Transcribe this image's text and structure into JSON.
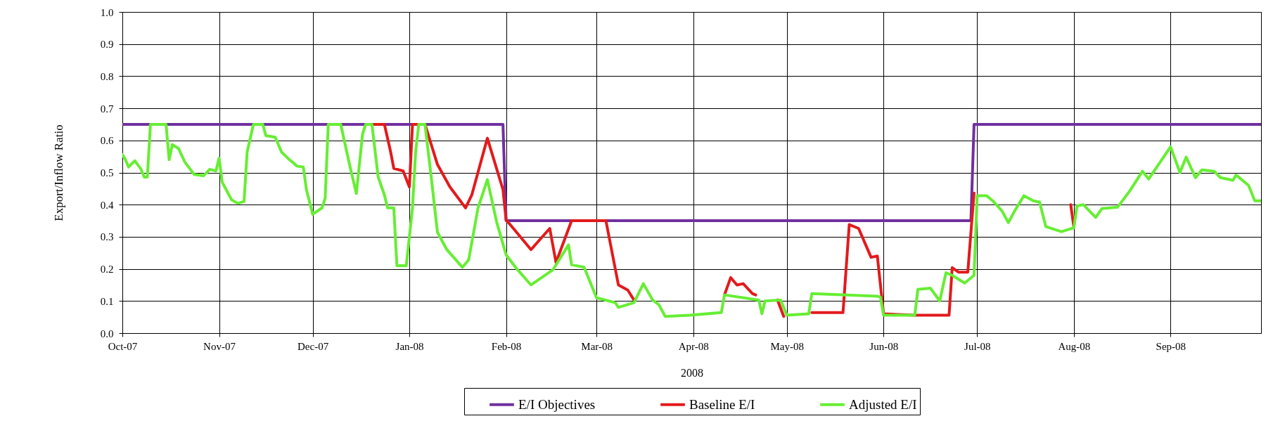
{
  "chart_data": {
    "type": "line",
    "xlabel": "2008",
    "ylabel": "Export/Inflow Ratio",
    "xlim": [
      "2007-10-01",
      "2008-09-30"
    ],
    "ylim": [
      0,
      1
    ],
    "xticks": [
      {
        "value": "2007-10-01",
        "label": "Oct-07"
      },
      {
        "value": "2007-11-01",
        "label": "Nov-07"
      },
      {
        "value": "2007-12-01",
        "label": "Dec-07"
      },
      {
        "value": "2008-01-01",
        "label": "Jan-08"
      },
      {
        "value": "2008-02-01",
        "label": "Feb-08"
      },
      {
        "value": "2008-03-01",
        "label": "Mar-08"
      },
      {
        "value": "2008-04-01",
        "label": "Apr-08"
      },
      {
        "value": "2008-05-01",
        "label": "May-08"
      },
      {
        "value": "2008-06-01",
        "label": "Jun-08"
      },
      {
        "value": "2008-07-01",
        "label": "Jul-08"
      },
      {
        "value": "2008-08-01",
        "label": "Aug-08"
      },
      {
        "value": "2008-09-01",
        "label": "Sep-08"
      }
    ],
    "yticks": [
      {
        "value": 0,
        "label": "0.0"
      },
      {
        "value": 0.1,
        "label": "0.1"
      },
      {
        "value": 0.2,
        "label": "0.2"
      },
      {
        "value": 0.3,
        "label": "0.3"
      },
      {
        "value": 0.4,
        "label": "0.4"
      },
      {
        "value": 0.5,
        "label": "0.5"
      },
      {
        "value": 0.6,
        "label": "0.6"
      },
      {
        "value": 0.7,
        "label": "0.7"
      },
      {
        "value": 0.8,
        "label": "0.8"
      },
      {
        "value": 0.9,
        "label": "0.9"
      },
      {
        "value": 1,
        "label": "1.0"
      }
    ],
    "grid": true,
    "legend": "bottom",
    "line_style": "solid",
    "series": [
      {
        "name": "E/I Objectives",
        "color": "#7030a0",
        "x": [
          "2007-10-01",
          "2008-01-31",
          "2008-02-01",
          "2008-06-29",
          "2008-06-30",
          "2008-09-30"
        ],
        "values": [
          0.65,
          0.65,
          0.35,
          0.35,
          0.65,
          0.65
        ]
      },
      {
        "name": "Baseline E/I",
        "color": "#e31a1c",
        "x": [
          "2007-12-20",
          "2007-12-24",
          "2007-12-26",
          "2007-12-27",
          "2007-12-30",
          "2008-01-01",
          "2008-01-02",
          "2008-01-06",
          "2008-01-10",
          "2008-01-14",
          "2008-01-19",
          "2008-01-21",
          "2008-01-26",
          "2008-01-31",
          "2008-02-01",
          "2008-02-03",
          "2008-02-09",
          "2008-02-15",
          "2008-02-17",
          "2008-02-22",
          "2008-03-04",
          "2008-03-08",
          "2008-03-11",
          "2008-03-13",
          "2008-03-25",
          "2008-04-11",
          "2008-04-13",
          "2008-04-15",
          "2008-04-17",
          "2008-04-20",
          "2008-04-21",
          "2008-04-25",
          "2008-04-28",
          "2008-04-30",
          "2008-05-05",
          "2008-05-09",
          "2008-05-19",
          "2008-05-21",
          "2008-05-24",
          "2008-05-28",
          "2008-05-30",
          "2008-06-01",
          "2008-06-11",
          "2008-06-22",
          "2008-06-23",
          "2008-06-25",
          "2008-06-28",
          "2008-06-30",
          "2008-07-15",
          "2008-07-31",
          "2008-08-01"
        ],
        "values": [
          0.65,
          0.65,
          0.564,
          0.513,
          0.505,
          0.455,
          0.65,
          0.65,
          0.525,
          0.455,
          0.39,
          0.43,
          0.607,
          0.447,
          0.353,
          0.33,
          0.26,
          0.326,
          0.22,
          0.35,
          0.35,
          0.15,
          0.134,
          0.103,
          null,
          0.119,
          0.173,
          0.15,
          0.154,
          0.123,
          0.119,
          null,
          0.103,
          0.052,
          null,
          0.064,
          0.064,
          0.338,
          0.326,
          0.236,
          0.24,
          0.06,
          0.056,
          0.056,
          0.204,
          0.19,
          0.19,
          0.436,
          null,
          0.4,
          0.33
        ]
      },
      {
        "name": "Adjusted E/I",
        "color": "#66ee33",
        "x": [
          "2007-10-01",
          "2007-10-02",
          "2007-10-03",
          "2007-10-05",
          "2007-10-07",
          "2007-10-08",
          "2007-10-09",
          "2007-10-10",
          "2007-10-15",
          "2007-10-16",
          "2007-10-17",
          "2007-10-19",
          "2007-10-21",
          "2007-10-24",
          "2007-10-27",
          "2007-10-29",
          "2007-10-31",
          "2007-11-01",
          "2007-11-02",
          "2007-11-05",
          "2007-11-07",
          "2007-11-09",
          "2007-11-10",
          "2007-11-12",
          "2007-11-15",
          "2007-11-16",
          "2007-11-19",
          "2007-11-21",
          "2007-11-23",
          "2007-11-26",
          "2007-11-28",
          "2007-11-29",
          "2007-12-01",
          "2007-12-04",
          "2007-12-05",
          "2007-12-06",
          "2007-12-10",
          "2007-12-13",
          "2007-12-15",
          "2007-12-17",
          "2007-12-18",
          "2007-12-20",
          "2007-12-22",
          "2007-12-24",
          "2007-12-25",
          "2007-12-27",
          "2007-12-28",
          "2007-12-31",
          "2008-01-02",
          "2008-01-03",
          "2008-01-04",
          "2008-01-06",
          "2008-01-08",
          "2008-01-10",
          "2008-01-13",
          "2008-01-18",
          "2008-01-20",
          "2008-01-23",
          "2008-01-26",
          "2008-01-29",
          "2008-02-01",
          "2008-02-04",
          "2008-02-09",
          "2008-02-16",
          "2008-02-21",
          "2008-02-22",
          "2008-02-26",
          "2008-03-01",
          "2008-03-07",
          "2008-03-08",
          "2008-03-13",
          "2008-03-16",
          "2008-03-19",
          "2008-03-21",
          "2008-03-23",
          "2008-03-31",
          "2008-04-10",
          "2008-04-11",
          "2008-04-22",
          "2008-04-23",
          "2008-04-24",
          "2008-04-29",
          "2008-05-01",
          "2008-05-08",
          "2008-05-09",
          "2008-05-30",
          "2008-05-31",
          "2008-06-01",
          "2008-06-11",
          "2008-06-12",
          "2008-06-16",
          "2008-06-19",
          "2008-06-21",
          "2008-06-23",
          "2008-06-27",
          "2008-06-30",
          "2008-07-01",
          "2008-07-04",
          "2008-07-06",
          "2008-07-09",
          "2008-07-11",
          "2008-07-13",
          "2008-07-16",
          "2008-07-19",
          "2008-07-21",
          "2008-07-23",
          "2008-07-28",
          "2008-08-01",
          "2008-08-02",
          "2008-08-04",
          "2008-08-08",
          "2008-08-10",
          "2008-08-15",
          "2008-08-19",
          "2008-08-23",
          "2008-08-25",
          "2008-09-01",
          "2008-09-04",
          "2008-09-06",
          "2008-09-09",
          "2008-09-11",
          "2008-09-15",
          "2008-09-17",
          "2008-09-21",
          "2008-09-22",
          "2008-09-26",
          "2008-09-28",
          "2008-09-30"
        ],
        "values": [
          0.556,
          0.54,
          0.517,
          0.537,
          0.51,
          0.486,
          0.486,
          0.65,
          0.65,
          0.54,
          0.587,
          0.575,
          0.533,
          0.494,
          0.49,
          0.51,
          0.505,
          0.545,
          0.47,
          0.415,
          0.404,
          0.41,
          0.564,
          0.65,
          0.65,
          0.615,
          0.61,
          0.564,
          0.545,
          0.52,
          0.517,
          0.447,
          0.37,
          0.39,
          0.42,
          0.65,
          0.65,
          0.517,
          0.435,
          0.62,
          0.65,
          0.65,
          0.486,
          0.43,
          0.39,
          0.39,
          0.21,
          0.21,
          0.39,
          0.564,
          0.65,
          0.65,
          0.486,
          0.314,
          0.26,
          0.205,
          0.228,
          0.39,
          0.478,
          0.345,
          0.244,
          0.205,
          0.15,
          0.197,
          0.275,
          0.213,
          0.205,
          0.11,
          0.095,
          0.08,
          0.095,
          0.154,
          0.103,
          0.088,
          0.052,
          0.056,
          0.064,
          0.119,
          0.103,
          0.06,
          0.1,
          0.103,
          0.056,
          0.06,
          0.123,
          0.115,
          0.112,
          0.056,
          0.056,
          0.136,
          0.14,
          0.1,
          0.188,
          0.18,
          0.156,
          0.18,
          0.428,
          0.428,
          0.412,
          0.38,
          0.344,
          0.38,
          0.428,
          0.412,
          0.408,
          0.332,
          0.316,
          0.328,
          0.396,
          0.4,
          0.36,
          0.388,
          0.392,
          0.444,
          0.504,
          0.48,
          0.58,
          0.5,
          0.548,
          0.484,
          0.508,
          0.504,
          0.484,
          0.476,
          0.492,
          0.46,
          0.412,
          0.412
        ]
      }
    ]
  }
}
